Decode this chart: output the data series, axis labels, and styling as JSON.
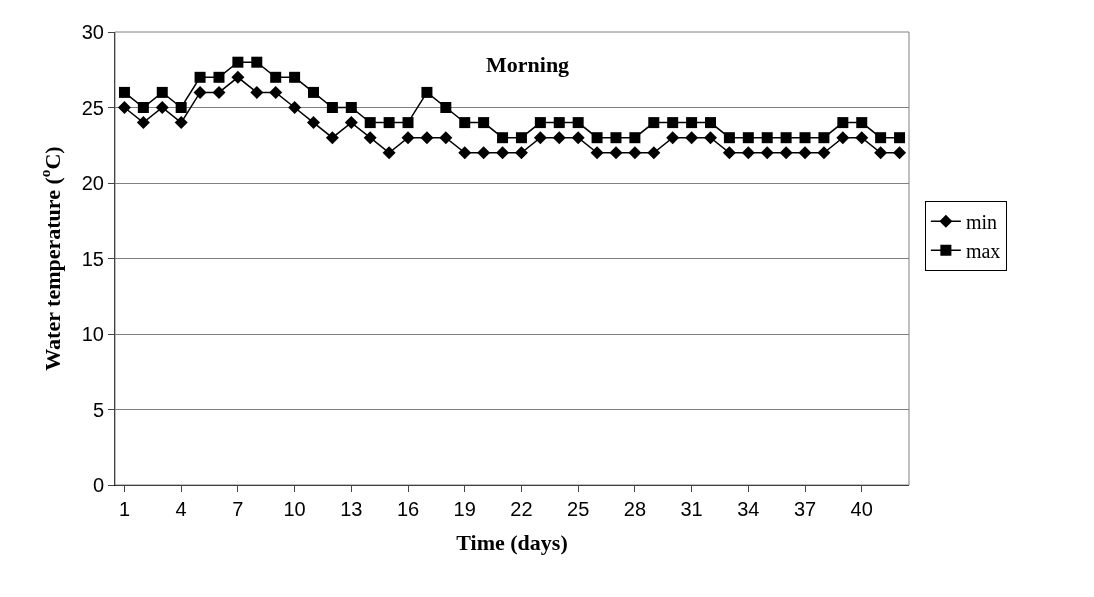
{
  "chart_data": {
    "type": "line",
    "title": "Morning",
    "xlabel": "Time (days)",
    "ylabel": "Water temperature ($^{o}$C)",
    "categories": [
      "1",
      null,
      null,
      "4",
      null,
      null,
      "7",
      null,
      null,
      "10",
      null,
      null,
      "13",
      null,
      null,
      "16",
      null,
      null,
      "19",
      null,
      null,
      "22",
      null,
      null,
      "25",
      null,
      null,
      "28",
      null,
      null,
      "31",
      null,
      null,
      "34",
      null,
      null,
      "37",
      null,
      null,
      "40",
      null,
      null
    ],
    "series": [
      {
        "name": "min",
        "color": "#000000",
        "marker": "diamond",
        "values": [
          25,
          24,
          25,
          24,
          26,
          26,
          27,
          26,
          26,
          25,
          24,
          23,
          24,
          23,
          22,
          23,
          23,
          23,
          22,
          22,
          22,
          22,
          23,
          23,
          23,
          22,
          22,
          22,
          22,
          23,
          23,
          23,
          22,
          22,
          22,
          22,
          22,
          22,
          23,
          23,
          22,
          22
        ]
      },
      {
        "name": "max",
        "color": "#000000",
        "marker": "square",
        "values": [
          26,
          25,
          26,
          25,
          27,
          27,
          28,
          28,
          27,
          27,
          26,
          25,
          25,
          24,
          24,
          24,
          26,
          25,
          24,
          24,
          23,
          23,
          24,
          24,
          24,
          23,
          23,
          23,
          24,
          24,
          24,
          24,
          23,
          23,
          23,
          23,
          23,
          23,
          24,
          24,
          23,
          23
        ]
      }
    ],
    "ylim": [
      0,
      30
    ],
    "yticks": [
      0,
      5,
      10,
      15,
      20,
      25,
      30
    ],
    "grid": "y",
    "legend": "right",
    "line_style": "solid"
  }
}
